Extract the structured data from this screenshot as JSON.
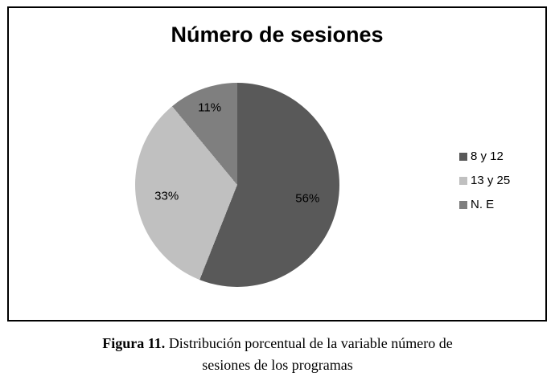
{
  "chart_data": {
    "type": "pie",
    "title": "Número de sesiones",
    "legend_position": "right",
    "start_angle_deg": 0,
    "direction": "clockwise",
    "slices": [
      {
        "label": "8 y 12",
        "value": 56,
        "pct_label": "56%",
        "color": "#595959",
        "label_color": "#000000"
      },
      {
        "label": "13 y 25",
        "value": 33,
        "pct_label": "33%",
        "color": "#c0c0c0",
        "label_color": "#000000"
      },
      {
        "label": "N. E",
        "value": 11,
        "pct_label": "11%",
        "color": "#7f7f7f",
        "label_color": "#000000"
      }
    ]
  },
  "figure": {
    "caption_bold": "Figura 11.",
    "caption_line1": " Distribución porcentual de la variable número de",
    "caption_line2": "sesiones de los programas"
  }
}
